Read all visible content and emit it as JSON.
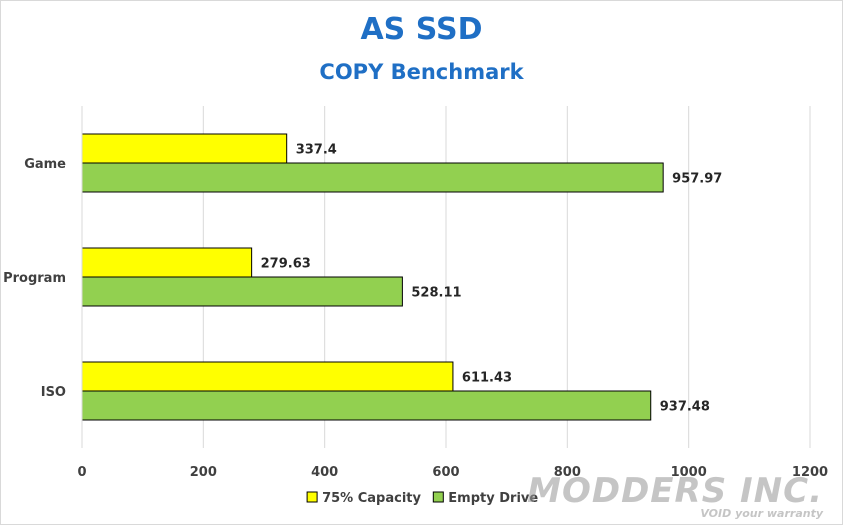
{
  "title": "AS SSD",
  "subtitle": "COPY Benchmark",
  "watermark": {
    "line1": "MODDERS INC.",
    "line2": "VOID your warranty"
  },
  "chart_data": {
    "type": "bar",
    "orientation": "horizontal",
    "categories": [
      "Game",
      "Program",
      "ISO"
    ],
    "series": [
      {
        "name": "75% Capacity",
        "color": "#ffff00",
        "values": [
          337.4,
          279.63,
          611.43
        ],
        "labels": [
          "337.4",
          "279.63",
          "611.43"
        ]
      },
      {
        "name": "Empty Drive",
        "color": "#92d050",
        "values": [
          957.97,
          528.11,
          937.48
        ],
        "labels": [
          "957.97",
          "528.11",
          "937.48"
        ]
      }
    ],
    "xlim": [
      0,
      1200
    ],
    "xticks": [
      0,
      200,
      400,
      600,
      800,
      1000,
      1200
    ],
    "grid": true,
    "legend": "bottom"
  }
}
